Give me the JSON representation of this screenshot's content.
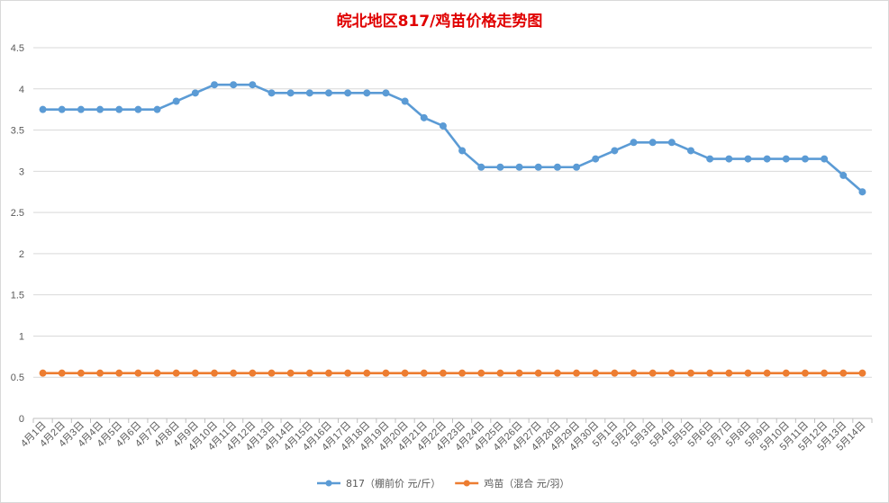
{
  "chart_data": {
    "type": "line",
    "title": "皖北地区817/鸡苗价格走势图",
    "xlabel": "",
    "ylabel": "",
    "ylim": [
      0,
      4.5
    ],
    "ytick_step": 0.5,
    "ytick_labels": [
      "0",
      "0.5",
      "1",
      "1.5",
      "2",
      "2.5",
      "3",
      "3.5",
      "4",
      "4.5"
    ],
    "grid": true,
    "legend_position": "bottom",
    "categories": [
      "4月1日",
      "4月2日",
      "4月3日",
      "4月4日",
      "4月5日",
      "4月6日",
      "4月7日",
      "4月8日",
      "4月9日",
      "4月10日",
      "4月11日",
      "4月12日",
      "4月13日",
      "4月14日",
      "4月15日",
      "4月16日",
      "4月17日",
      "4月18日",
      "4月19日",
      "4月20日",
      "4月21日",
      "4月22日",
      "4月23日",
      "4月24日",
      "4月25日",
      "4月26日",
      "4月27日",
      "4月28日",
      "4月29日",
      "4月30日",
      "5月1日",
      "5月2日",
      "5月3日",
      "5月4日",
      "5月5日",
      "5月6日",
      "5月7日",
      "5月8日",
      "5月9日",
      "5月10日",
      "5月11日",
      "5月12日",
      "5月13日",
      "5月14日"
    ],
    "series": [
      {
        "name": "817（棚前价 元/斤）",
        "color": "#5b9bd5",
        "values": [
          3.75,
          3.75,
          3.75,
          3.75,
          3.75,
          3.75,
          3.75,
          3.85,
          3.95,
          4.05,
          4.05,
          4.05,
          3.95,
          3.95,
          3.95,
          3.95,
          3.95,
          3.95,
          3.95,
          3.85,
          3.65,
          3.55,
          3.25,
          3.05,
          3.05,
          3.05,
          3.05,
          3.05,
          3.05,
          3.15,
          3.25,
          3.35,
          3.35,
          3.35,
          3.25,
          3.15,
          3.15,
          3.15,
          3.15,
          3.15,
          3.15,
          3.15,
          2.95,
          2.75
        ]
      },
      {
        "name": "鸡苗（混合 元/羽）",
        "color": "#ed7d31",
        "values": [
          0.55,
          0.55,
          0.55,
          0.55,
          0.55,
          0.55,
          0.55,
          0.55,
          0.55,
          0.55,
          0.55,
          0.55,
          0.55,
          0.55,
          0.55,
          0.55,
          0.55,
          0.55,
          0.55,
          0.55,
          0.55,
          0.55,
          0.55,
          0.55,
          0.55,
          0.55,
          0.55,
          0.55,
          0.55,
          0.55,
          0.55,
          0.55,
          0.55,
          0.55,
          0.55,
          0.55,
          0.55,
          0.55,
          0.55,
          0.55,
          0.55,
          0.55,
          0.55,
          0.55
        ]
      }
    ],
    "colors": {
      "grid": "#d9d9d9",
      "axis": "#bfbfbf",
      "text": "#595959",
      "title": "#e00000"
    }
  }
}
